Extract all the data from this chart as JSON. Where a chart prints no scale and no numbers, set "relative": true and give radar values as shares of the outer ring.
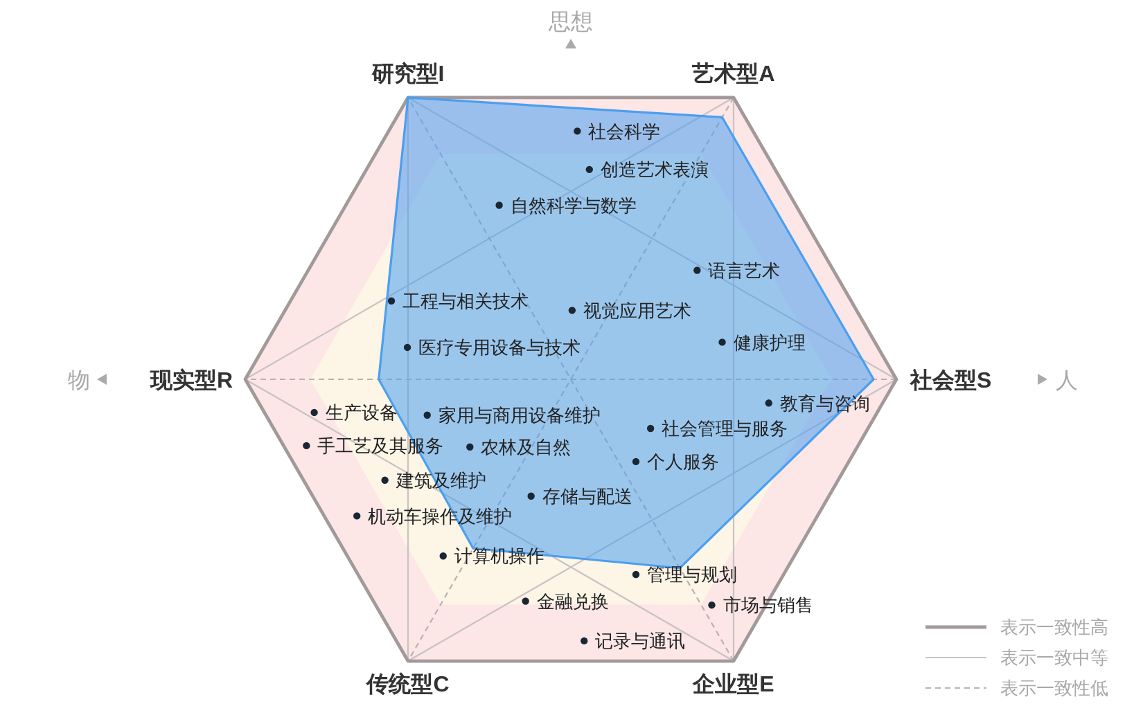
{
  "chart_data": {
    "type": "radar",
    "relative": true,
    "grid": true,
    "categories": [
      "艺术型A",
      "社会型S",
      "企业型E",
      "传统型C",
      "现实型R",
      "研究型I"
    ],
    "series": [
      {
        "color": "#4a9ff0",
        "values": [
          0.93,
          0.93,
          0.67,
          0.6,
          0.59,
          1
        ]
      }
    ],
    "annotations": [
      "思想",
      "人",
      "物",
      "社会科学",
      "创造艺术表演",
      "自然科学与数学",
      "语言艺术",
      "工程与相关技术",
      "视觉应用艺术",
      "健康护理",
      "医疗专用设备与技术",
      "教育与咨询",
      "生产设备",
      "家用与商用设备维护",
      "社会管理与服务",
      "手工艺及其服务",
      "农林及自然",
      "个人服务",
      "建筑及维护",
      "存储与配送",
      "机动车操作及维护",
      "计算机操作",
      "管理与规划",
      "金融兑换",
      "市场与销售",
      "记录与通讯",
      "表示一致性高",
      "表示一致中等",
      "表示一致性低"
    ]
  }
}
